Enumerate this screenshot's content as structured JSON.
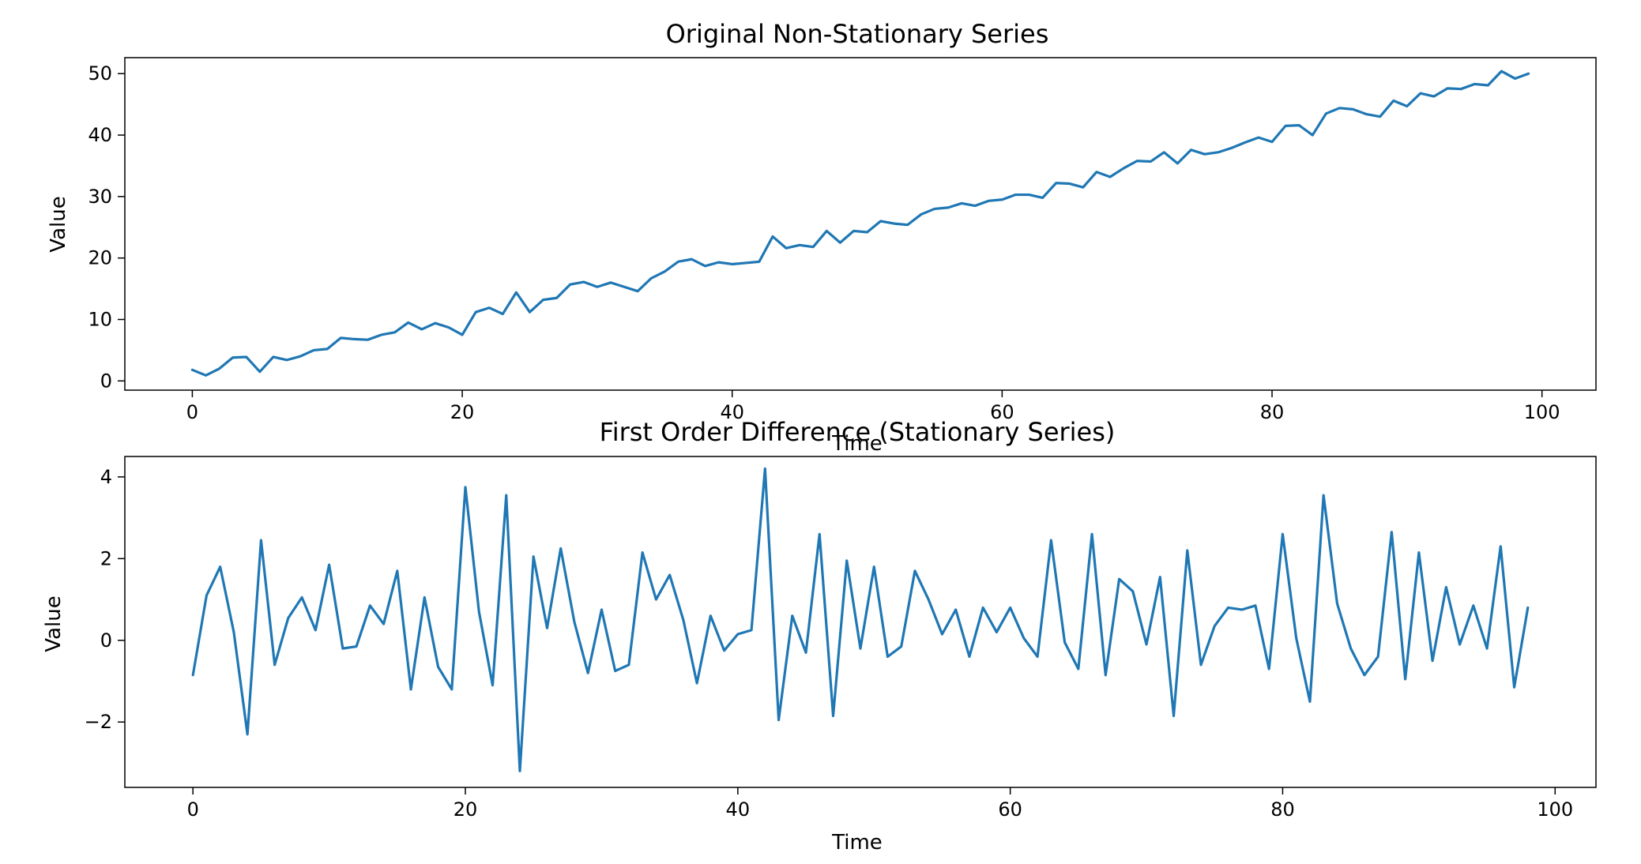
{
  "chart_data": [
    {
      "type": "line",
      "title": "Original Non-Stationary Series",
      "xlabel": "Time",
      "ylabel": "Value",
      "xlim": [
        -5,
        104
      ],
      "ylim": [
        -1.5,
        52.6
      ],
      "xticks": [
        0,
        20,
        40,
        60,
        80,
        100
      ],
      "yticks": [
        0,
        10,
        20,
        30,
        40,
        50
      ],
      "grid": false,
      "color": "#1f77b4",
      "series": [
        {
          "x": [
            0,
            1,
            2,
            3,
            4,
            5,
            6,
            7,
            8,
            9,
            10,
            11,
            12,
            13,
            14,
            15,
            16,
            17,
            18,
            19,
            20,
            21,
            22,
            23,
            24,
            25,
            26,
            27,
            28,
            29,
            30,
            31,
            32,
            33,
            34,
            35,
            36,
            37,
            38,
            39,
            40,
            41,
            42,
            43,
            44,
            45,
            46,
            47,
            48,
            49,
            50,
            51,
            52,
            53,
            54,
            55,
            56,
            57,
            58,
            59,
            60,
            61,
            62,
            63,
            64,
            65,
            66,
            67,
            68,
            69,
            70,
            71,
            72,
            73,
            74,
            75,
            76,
            77,
            78,
            79,
            80,
            81,
            82,
            83,
            84,
            85,
            86,
            87,
            88,
            89,
            90,
            91,
            92,
            93,
            94,
            95,
            96,
            97,
            98,
            99
          ],
          "values": [
            1.8,
            0.9,
            2.0,
            3.8,
            3.9,
            1.5,
            3.9,
            3.4,
            4.0,
            5.0,
            5.2,
            7.0,
            6.8,
            6.7,
            7.5,
            7.9,
            9.5,
            8.4,
            9.4,
            8.7,
            7.5,
            11.2,
            11.9,
            10.9,
            14.4,
            11.2,
            13.2,
            13.5,
            15.7,
            16.1,
            15.3,
            16.0,
            15.3,
            14.6,
            16.7,
            17.8,
            19.4,
            19.8,
            18.7,
            19.3,
            19.0,
            19.2,
            19.4,
            23.5,
            21.6,
            22.1,
            21.8,
            24.4,
            22.5,
            24.4,
            24.2,
            26.0,
            25.6,
            25.4,
            27.1,
            28.0,
            28.2,
            28.9,
            28.5,
            29.3,
            29.5,
            30.3,
            30.3,
            29.8,
            32.2,
            32.1,
            31.5,
            34.0,
            33.2,
            34.6,
            35.8,
            35.7,
            37.2,
            35.4,
            37.6,
            36.9,
            37.2,
            37.9,
            38.8,
            39.6,
            38.9,
            41.5,
            41.6,
            40.0,
            43.5,
            44.4,
            44.2,
            43.4,
            43.0,
            45.6,
            44.7,
            46.8,
            46.3,
            47.6,
            47.5,
            48.3,
            48.1,
            50.4,
            49.2,
            50.0
          ]
        }
      ]
    },
    {
      "type": "line",
      "title": "First Order Difference (Stationary Series)",
      "xlabel": "Time",
      "ylabel": "Value",
      "xlim": [
        -5,
        103
      ],
      "ylim": [
        -3.6,
        4.5
      ],
      "xticks": [
        0,
        20,
        40,
        60,
        80,
        100
      ],
      "yticks": [
        -2,
        0,
        2,
        4
      ],
      "grid": false,
      "color": "#1f77b4",
      "series": [
        {
          "x": [
            0,
            1,
            2,
            3,
            4,
            5,
            6,
            7,
            8,
            9,
            10,
            11,
            12,
            13,
            14,
            15,
            16,
            17,
            18,
            19,
            20,
            21,
            22,
            23,
            24,
            25,
            26,
            27,
            28,
            29,
            30,
            31,
            32,
            33,
            34,
            35,
            36,
            37,
            38,
            39,
            40,
            41,
            42,
            43,
            44,
            45,
            46,
            47,
            48,
            49,
            50,
            51,
            52,
            53,
            54,
            55,
            56,
            57,
            58,
            59,
            60,
            61,
            62,
            63,
            64,
            65,
            66,
            67,
            68,
            69,
            70,
            71,
            72,
            73,
            74,
            75,
            76,
            77,
            78,
            79,
            80,
            81,
            82,
            83,
            84,
            85,
            86,
            87,
            88,
            89,
            90,
            91,
            92,
            93,
            94,
            95,
            96,
            97,
            98
          ],
          "values": [
            -0.85,
            1.1,
            1.8,
            0.2,
            -2.3,
            2.45,
            -0.6,
            0.55,
            1.05,
            0.25,
            1.85,
            -0.2,
            -0.15,
            0.85,
            0.4,
            1.7,
            -1.2,
            1.05,
            -0.65,
            -1.2,
            3.75,
            0.7,
            -1.1,
            3.55,
            -3.2,
            2.05,
            0.3,
            2.25,
            0.45,
            -0.8,
            0.75,
            -0.75,
            -0.6,
            2.15,
            1.0,
            1.6,
            0.5,
            -1.05,
            0.6,
            -0.25,
            0.15,
            0.25,
            4.2,
            -1.95,
            0.6,
            -0.3,
            2.6,
            -1.85,
            1.95,
            -0.2,
            1.8,
            -0.4,
            -0.15,
            1.7,
            1.0,
            0.15,
            0.75,
            -0.4,
            0.8,
            0.2,
            0.8,
            0.05,
            -0.4,
            2.45,
            -0.05,
            -0.7,
            2.6,
            -0.85,
            1.5,
            1.2,
            -0.1,
            1.55,
            -1.85,
            2.2,
            -0.6,
            0.35,
            0.8,
            0.75,
            0.85,
            -0.7,
            2.6,
            0.05,
            -1.5,
            3.55,
            0.9,
            -0.2,
            -0.85,
            -0.4,
            2.65,
            -0.95,
            2.15,
            -0.5,
            1.3,
            -0.1,
            0.85,
            -0.2,
            2.3,
            -1.15,
            0.8
          ]
        }
      ]
    }
  ]
}
